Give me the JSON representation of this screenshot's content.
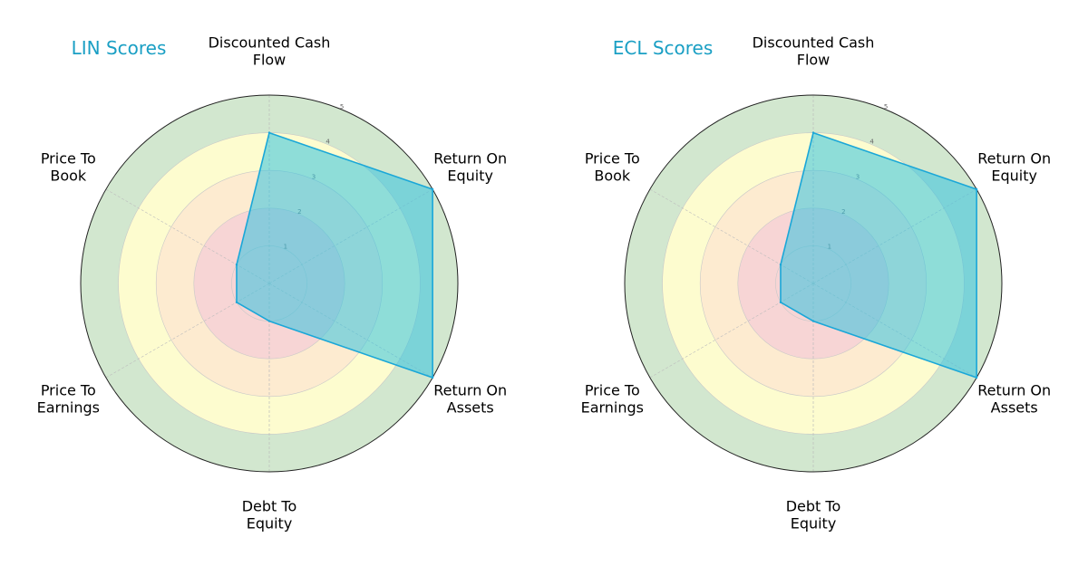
{
  "chart_data": [
    {
      "type": "radar",
      "title": "LIN Scores",
      "axes": [
        "Discounted Cash Flow",
        "Return On Equity",
        "Return On Assets",
        "Debt To Equity",
        "Price To Earnings",
        "Price To Book"
      ],
      "values": [
        4,
        5,
        5,
        1,
        1,
        1
      ],
      "rlim": [
        0,
        5
      ],
      "rticks": [
        "1",
        "2",
        "3",
        "4",
        "5"
      ]
    },
    {
      "type": "radar",
      "title": "ECL Scores",
      "axes": [
        "Discounted Cash Flow",
        "Return On Equity",
        "Return On Assets",
        "Debt To Equity",
        "Price To Earnings",
        "Price To Book"
      ],
      "values": [
        4,
        5,
        5,
        1,
        1,
        1
      ],
      "rlim": [
        0,
        5
      ],
      "rticks": [
        "1",
        "2",
        "3",
        "4",
        "5"
      ]
    }
  ],
  "colors": {
    "band_1": "#f7d5d5",
    "band_2": "#fdebd0",
    "band_3": "#fdfccf",
    "band_4": "#d2e7cf",
    "fill": "#33c3e0",
    "edge": "#1aa7d8",
    "title": "#1a9fc4"
  }
}
